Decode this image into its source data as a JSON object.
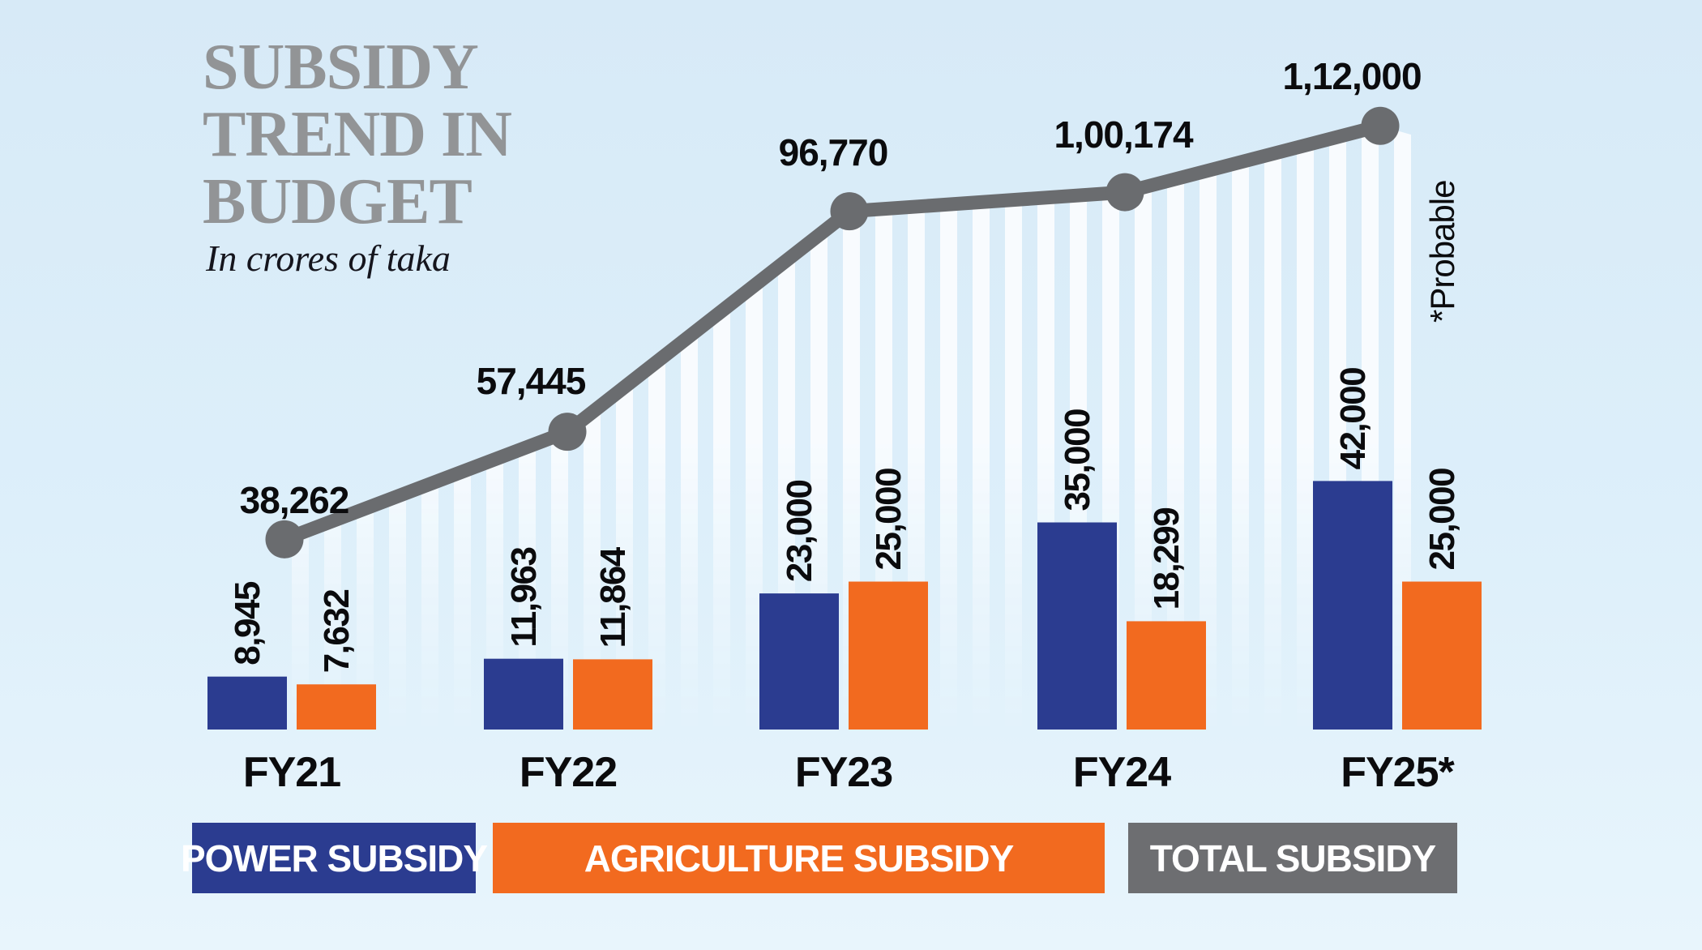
{
  "header": {
    "title_lines": [
      "SUBSIDY",
      "TREND IN",
      "BUDGET"
    ],
    "subtitle": "In crores of taka"
  },
  "note": "*Probable",
  "chart_data": {
    "type": "combo-grouped-bar-and-line",
    "title": "SUBSIDY TREND IN BUDGET",
    "subtitle": "In crores of taka",
    "unit": "crores of taka",
    "categories": [
      "FY21",
      "FY22",
      "FY23",
      "FY24",
      "FY25*"
    ],
    "series": [
      {
        "name": "POWER SUBSIDY",
        "type": "bar",
        "color": "#2b3c90",
        "values": [
          8945,
          11963,
          23000,
          35000,
          42000
        ],
        "value_labels": [
          "8,945",
          "11,963",
          "23,000",
          "35,000",
          "42,000"
        ]
      },
      {
        "name": "AGRICULTURE SUBSIDY",
        "type": "bar",
        "color": "#f26a1f",
        "values": [
          7632,
          11864,
          25000,
          18299,
          25000
        ],
        "value_labels": [
          "7,632",
          "11,864",
          "25,000",
          "18,299",
          "25,000"
        ]
      },
      {
        "name": "TOTAL SUBSIDY",
        "type": "line",
        "color": "#6a6c6f",
        "values": [
          38262,
          57445,
          96770,
          100174,
          112000
        ],
        "value_labels": [
          "38,262",
          "57,445",
          "96,770",
          "1,00,174",
          "1,12,000"
        ]
      }
    ],
    "annotations": [
      "*Probable"
    ],
    "grid": false,
    "legend_position": "bottom"
  },
  "legend": [
    {
      "label": "POWER SUBSIDY",
      "color": "#2b3c90"
    },
    {
      "label": "AGRICULTURE SUBSIDY",
      "color": "#f26a1f"
    },
    {
      "label": "TOTAL SUBSIDY",
      "color": "#6d6e71"
    }
  ],
  "colors": {
    "background": "#ddeffa",
    "title_gray": "#929496",
    "text_black": "#0b0b0d",
    "stripe_white": "#fbfdff",
    "line_gray": "#6a6c6f"
  }
}
